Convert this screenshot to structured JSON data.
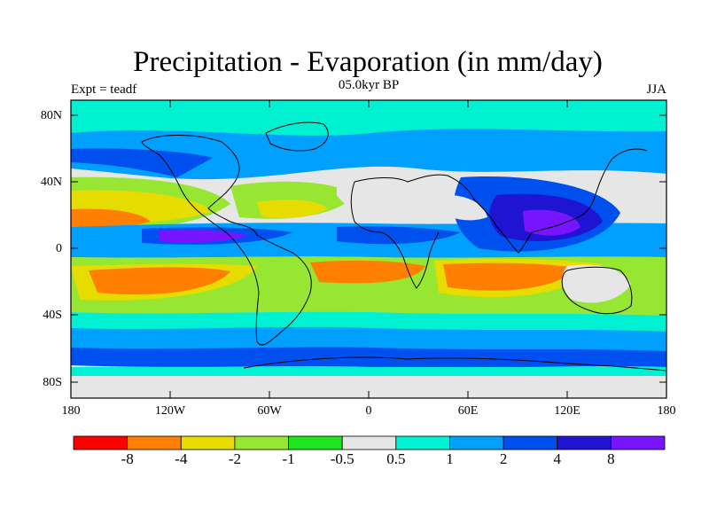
{
  "title": "Precipitation - Evaporation (in mm/day)",
  "subtitle": "05.0kyr BP",
  "left_label": "Expt = teadf",
  "right_label": "JJA",
  "lat_labels": [
    "80N",
    "40N",
    "0",
    "40S",
    "80S"
  ],
  "lon_labels": [
    "180",
    "120W",
    "60W",
    "0",
    "60E",
    "120E",
    "180"
  ],
  "colorbar": {
    "colors": [
      "#ff0000",
      "#ff8000",
      "#e6dc00",
      "#96e632",
      "#1ee61e",
      "#e6e6e6",
      "#00f0d2",
      "#00a0ff",
      "#0050f0",
      "#1e14d2",
      "#7814ff"
    ],
    "labels": [
      "-8",
      "-4",
      "-2",
      "-1",
      "-0.5",
      "0.5",
      "1",
      "2",
      "4",
      "8"
    ]
  }
}
